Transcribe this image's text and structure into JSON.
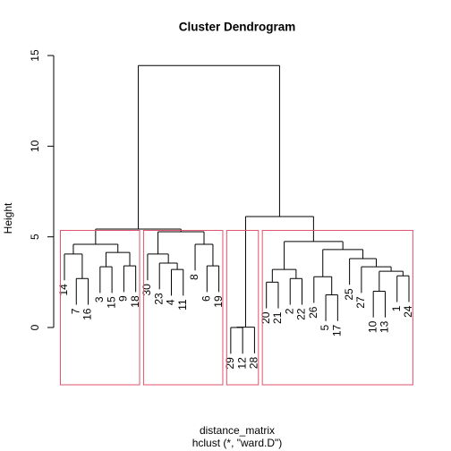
{
  "chart_data": {
    "type": "dendrogram",
    "title": "Cluster Dendrogram",
    "xlabel": "distance_matrix",
    "subtitle": "hclust (*, \"ward.D\")",
    "ylabel": "Height",
    "ylim": [
      -3.16,
      15.2
    ],
    "yticks": [
      0,
      5,
      10,
      15
    ],
    "hang": 0.1,
    "k": 4,
    "rect_color": "#df536b",
    "tree": {
      "height": 14.45,
      "children": [
        {
          "height": 5.43,
          "children": [
            {
              "height": 4.59,
              "children": [
                {
                  "height": 4.05,
                  "children": [
                    "14",
                    {
                      "height": 2.7,
                      "children": [
                        "7",
                        "16"
                      ]
                    }
                  ]
                },
                {
                  "height": 4.14,
                  "children": [
                    {
                      "height": 3.35,
                      "children": [
                        "3",
                        "15"
                      ]
                    },
                    {
                      "height": 3.4,
                      "children": [
                        "9",
                        "18"
                      ]
                    }
                  ]
                }
              ]
            },
            {
              "height": 5.28,
              "children": [
                {
                  "height": 4.05,
                  "children": [
                    "30",
                    {
                      "height": 3.55,
                      "children": [
                        "23",
                        {
                          "height": 3.2,
                          "children": [
                            "4",
                            "11"
                          ]
                        }
                      ]
                    }
                  ]
                },
                {
                  "height": 4.59,
                  "children": [
                    "8",
                    {
                      "height": 3.4,
                      "children": [
                        "6",
                        "19"
                      ]
                    }
                  ]
                }
              ]
            }
          ]
        },
        {
          "height": 6.12,
          "children": [
            {
              "height": 0.02,
              "children": [
                {
                  "height": 0,
                  "children": [
                    "29",
                    "12"
                  ]
                },
                "28"
              ]
            },
            {
              "height": 4.74,
              "children": [
                {
                  "height": 3.2,
                  "children": [
                    {
                      "height": 2.5,
                      "children": [
                        "20",
                        "21"
                      ]
                    },
                    {
                      "height": 2.7,
                      "children": [
                        "2",
                        "22"
                      ]
                    }
                  ]
                },
                {
                  "height": 4.3,
                  "children": [
                    {
                      "height": 2.8,
                      "children": [
                        "26",
                        {
                          "height": 1.8,
                          "children": [
                            "5",
                            "17"
                          ]
                        }
                      ]
                    },
                    {
                      "height": 3.8,
                      "children": [
                        "25",
                        {
                          "height": 3.35,
                          "children": [
                            "27",
                            {
                              "height": 3.1,
                              "children": [
                                {
                                  "height": 2.0,
                                  "children": [
                                    "10",
                                    "13"
                                  ]
                                },
                                {
                                  "height": 2.85,
                                  "children": [
                                    "1",
                                    "24"
                                  ]
                                }
                              ]
                            }
                          ]
                        }
                      ]
                    }
                  ]
                }
              ]
            }
          ]
        }
      ]
    }
  }
}
